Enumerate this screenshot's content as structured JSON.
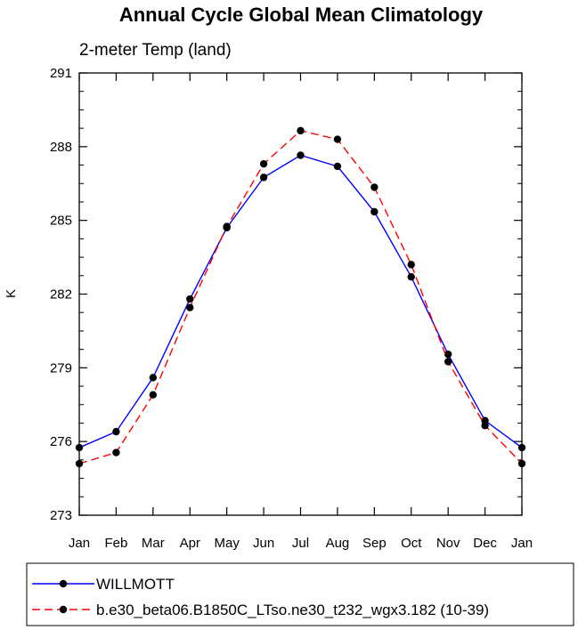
{
  "chart_data": {
    "type": "line",
    "title": "Annual Cycle Global Mean Climatology",
    "subtitle": "2-meter Temp (land)",
    "xlabel": "",
    "ylabel": "K",
    "categories": [
      "Jan",
      "Feb",
      "Mar",
      "Apr",
      "May",
      "Jun",
      "Jul",
      "Aug",
      "Sep",
      "Oct",
      "Nov",
      "Dec",
      "Jan"
    ],
    "ylim": [
      273,
      291
    ],
    "yticks": [
      273,
      276,
      279,
      282,
      285,
      288,
      291
    ],
    "series": [
      {
        "name": "WILLMOTT",
        "color": "#0000ff",
        "dash": "solid",
        "values": [
          275.75,
          276.4,
          278.6,
          281.8,
          284.7,
          286.75,
          287.65,
          287.2,
          285.35,
          282.7,
          279.55,
          276.85,
          275.75
        ]
      },
      {
        "name": "b.e30_beta06.B1850C_LTso.ne30_t232_wgx3.182 (10-39)",
        "color": "#ff0000",
        "dash": "dashed",
        "values": [
          275.1,
          275.55,
          277.9,
          281.45,
          284.75,
          287.3,
          288.65,
          288.3,
          286.35,
          283.2,
          279.25,
          276.65,
          275.1
        ]
      }
    ],
    "legend_position": "bottom"
  }
}
